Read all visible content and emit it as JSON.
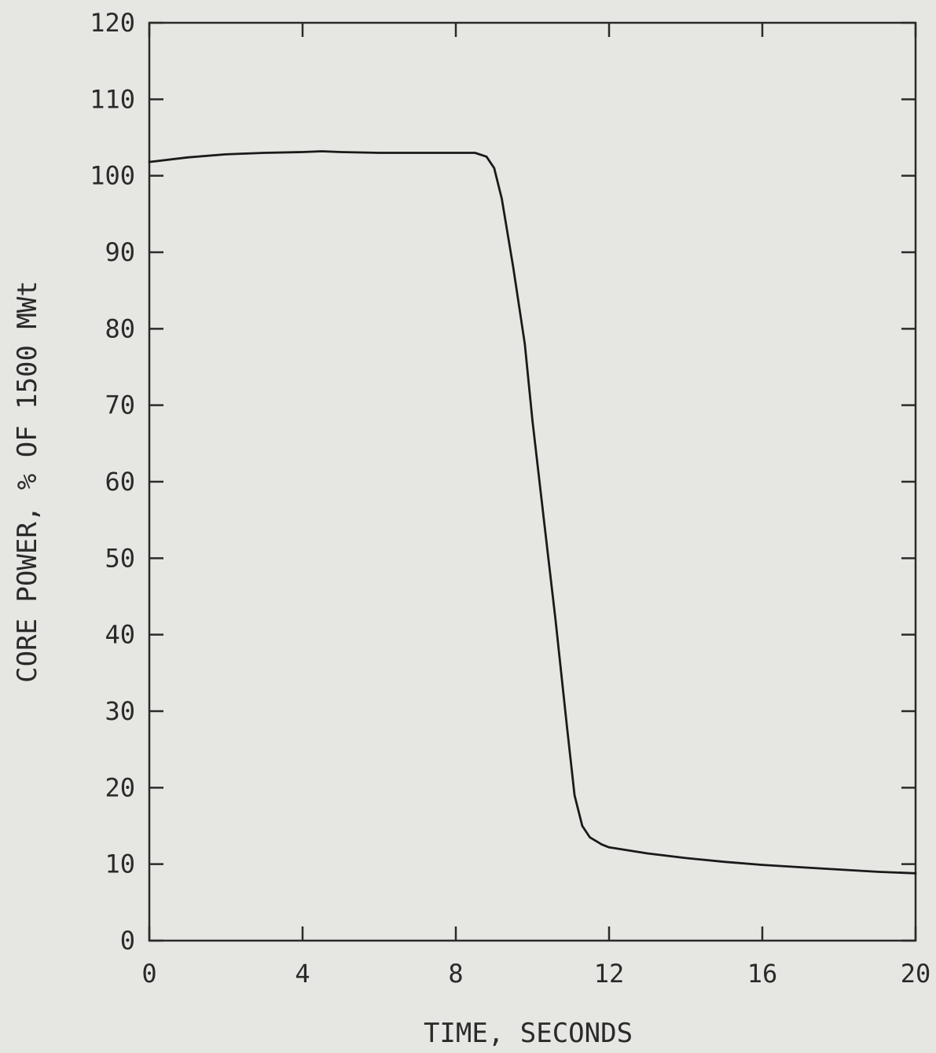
{
  "chart_data": {
    "type": "line",
    "title": "",
    "xlabel": "TIME, SECONDS",
    "ylabel": "CORE POWER, % OF 1500 MWt",
    "xlim": [
      0,
      20
    ],
    "ylim": [
      0,
      120
    ],
    "xticks": [
      0,
      4,
      8,
      12,
      16,
      20
    ],
    "yticks": [
      0,
      10,
      20,
      30,
      40,
      50,
      60,
      70,
      80,
      90,
      100,
      110,
      120
    ],
    "grid": false,
    "line_color": "#1a1a1a",
    "series": [
      {
        "x": [
          0,
          1,
          2,
          3,
          4,
          4.5,
          5,
          6,
          7,
          8,
          8.5,
          8.8,
          9.0,
          9.2,
          9.5,
          9.8,
          10.0,
          10.3,
          10.6,
          10.9,
          11.1,
          11.3,
          11.5,
          11.8,
          12.0,
          12.5,
          13,
          14,
          15,
          16,
          17,
          18,
          19,
          20
        ],
        "y": [
          101.8,
          102.4,
          102.8,
          103.0,
          103.1,
          103.2,
          103.1,
          103.0,
          103.0,
          103.0,
          103.0,
          102.5,
          101.0,
          97.0,
          88.0,
          78.0,
          68.0,
          55.0,
          42.0,
          28.0,
          19.0,
          15.0,
          13.5,
          12.6,
          12.2,
          11.8,
          11.4,
          10.8,
          10.3,
          9.9,
          9.6,
          9.3,
          9.0,
          8.8
        ]
      }
    ]
  }
}
